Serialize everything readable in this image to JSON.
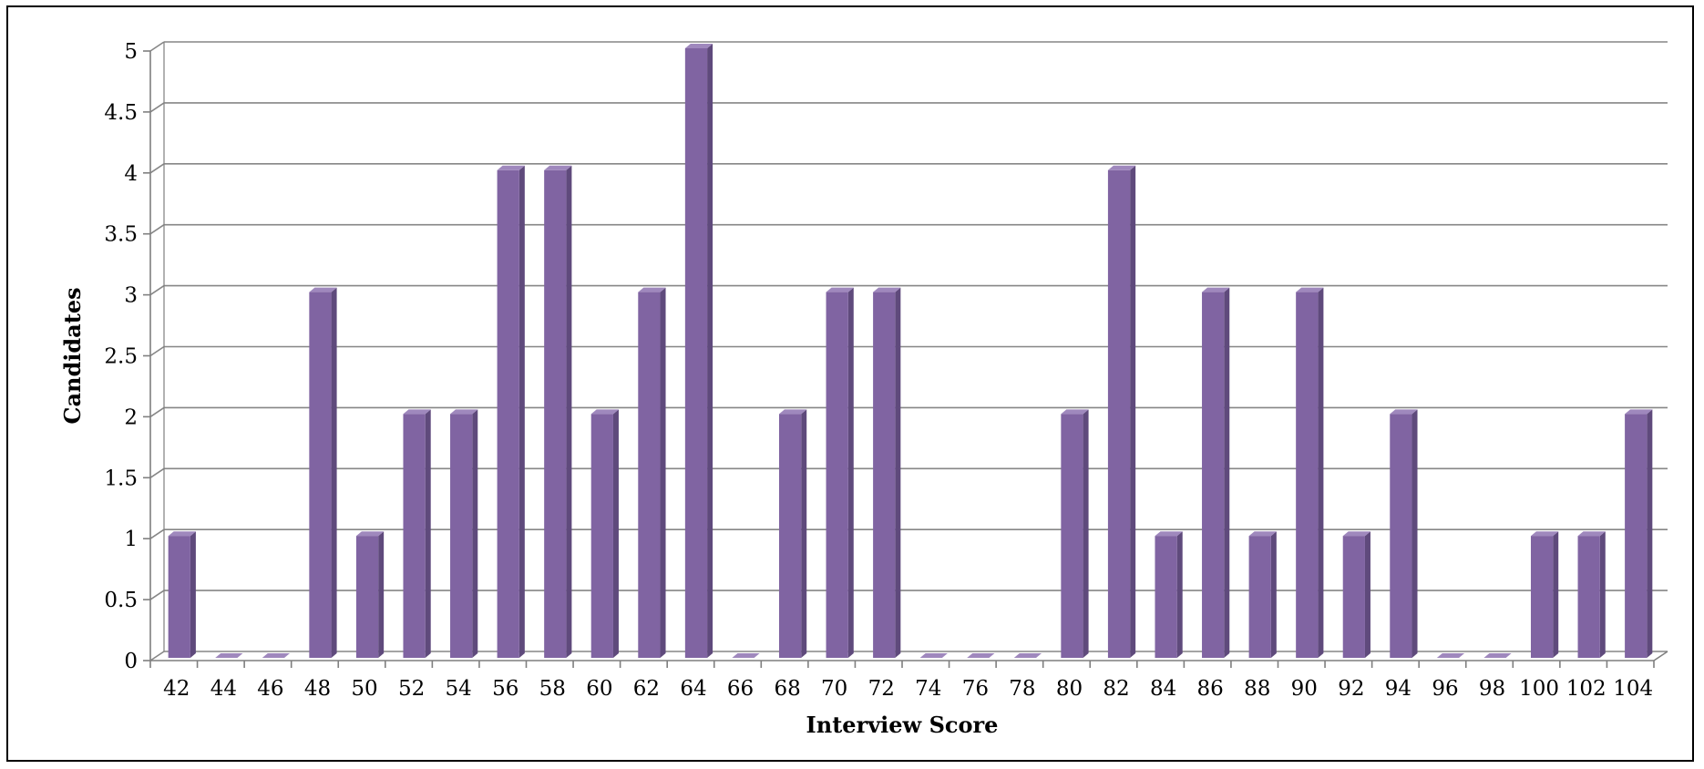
{
  "chart_data": {
    "type": "bar",
    "style": "3d-column",
    "title": "",
    "xlabel": "Interview Score",
    "ylabel": "Candidates",
    "categories": [
      "42",
      "44",
      "46",
      "48",
      "50",
      "52",
      "54",
      "56",
      "58",
      "60",
      "62",
      "64",
      "66",
      "68",
      "70",
      "72",
      "74",
      "76",
      "78",
      "80",
      "82",
      "84",
      "86",
      "88",
      "90",
      "92",
      "94",
      "96",
      "98",
      "100",
      "102",
      "104"
    ],
    "series": [
      {
        "values": [
          1,
          0,
          0,
          3,
          1,
          2,
          2,
          4,
          4,
          2,
          3,
          5,
          0,
          2,
          3,
          3,
          0,
          0,
          0,
          2,
          4,
          1,
          3,
          1,
          3,
          1,
          2,
          0,
          0,
          1,
          1,
          2
        ]
      }
    ],
    "ylim": [
      0,
      5
    ],
    "yticks": [
      "0",
      "0.5",
      "1",
      "1.5",
      "2",
      "2.5",
      "3",
      "3.5",
      "4",
      "4.5",
      "5"
    ],
    "grid": true,
    "legend": "none",
    "colors": {
      "bar_front": "#8064a2",
      "bar_side": "#5f4a7c",
      "bar_top": "#9f88bd",
      "grid": "#868686",
      "axis": "#7f7f7f"
    }
  }
}
